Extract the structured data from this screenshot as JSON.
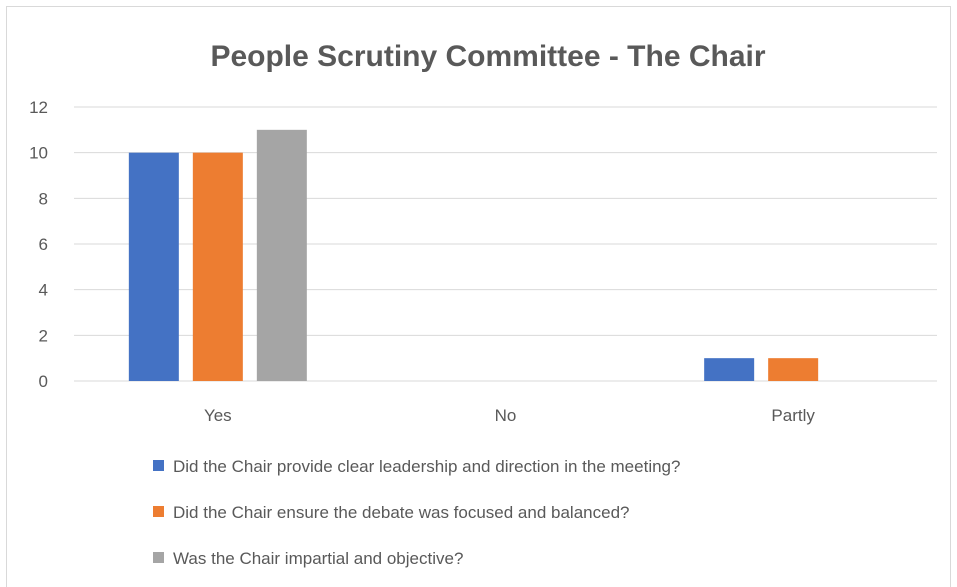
{
  "chart_data": {
    "type": "bar",
    "title": "People Scrutiny Committee - The Chair",
    "xlabel": "",
    "ylabel": "",
    "categories": [
      "Yes",
      "No",
      "Partly"
    ],
    "ylim": [
      0,
      12
    ],
    "yticks": [
      0,
      2,
      4,
      6,
      8,
      10,
      12
    ],
    "grid": true,
    "legend_position": "bottom",
    "series": [
      {
        "name": "Did the Chair provide clear leadership and direction in the meeting?",
        "color": "#4472c4",
        "values": [
          10,
          0,
          1
        ]
      },
      {
        "name": "Did the Chair ensure the debate was focused and balanced?",
        "color": "#ed7d31",
        "values": [
          10,
          0,
          1
        ]
      },
      {
        "name": "Was the Chair impartial and objective?",
        "color": "#a5a5a5",
        "values": [
          11,
          0,
          0
        ]
      }
    ]
  }
}
